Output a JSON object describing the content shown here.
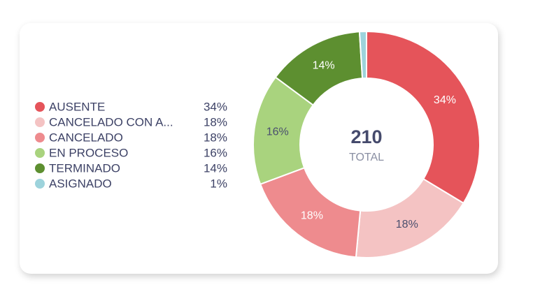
{
  "chart_data": {
    "type": "donut",
    "categories": [
      "AUSENTE",
      "CANCELADO CON A...",
      "CANCELADO",
      "EN PROCESO",
      "TERMINADO",
      "ASIGNADO"
    ],
    "values": [
      34,
      18,
      18,
      16,
      14,
      1
    ],
    "value_labels": [
      "34%",
      "18%",
      "18%",
      "16%",
      "14%",
      "1%"
    ],
    "colors": [
      "#e5545a",
      "#f4c3c3",
      "#ee8b8e",
      "#a9d37e",
      "#5d8f30",
      "#9dd3dc"
    ],
    "total": 210,
    "total_label": "TOTAL"
  }
}
